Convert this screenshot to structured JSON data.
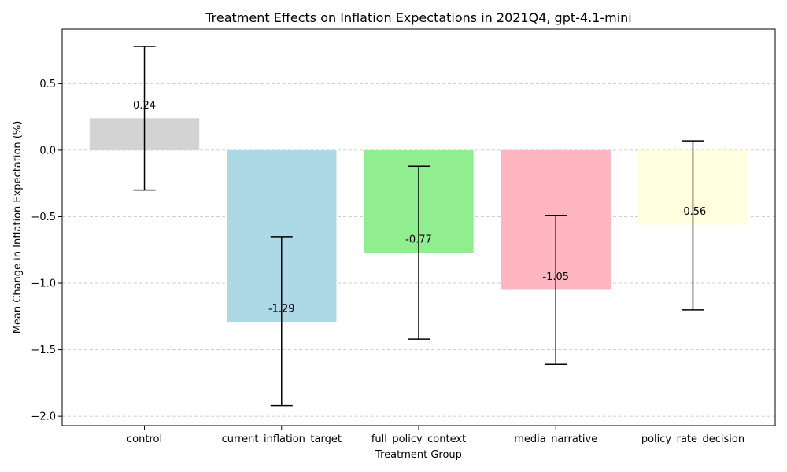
{
  "chart_data": {
    "type": "bar",
    "title": "Treatment Effects on Inflation Expectations in 2021Q4, gpt-4.1-mini",
    "xlabel": "Treatment Group",
    "ylabel": "Mean Change in Inflation Expectation (%)",
    "categories": [
      "control",
      "current_inflation_target",
      "full_policy_context",
      "media_narrative",
      "policy_rate_decision"
    ],
    "values": [
      0.24,
      -1.29,
      -0.77,
      -1.05,
      -0.56
    ],
    "value_labels": [
      "0.24",
      "-1.29",
      "-0.77",
      "-1.05",
      "-0.56"
    ],
    "error_low": [
      -0.3,
      -1.92,
      -1.42,
      -1.61,
      -1.2
    ],
    "error_high": [
      0.78,
      -0.65,
      -0.12,
      -0.49,
      0.07
    ],
    "colors": [
      "#d3d3d3",
      "#add8e6",
      "#90ee90",
      "#ffb6c1",
      "#ffffe0"
    ],
    "ylim": [
      -2.07,
      0.91
    ],
    "yticks": [
      0.5,
      0.0,
      -0.5,
      -1.0,
      -1.5,
      -2.0
    ],
    "ytick_labels": [
      "0.5",
      "0.0",
      "−0.5",
      "−1.0",
      "−1.5",
      "−2.0"
    ],
    "grid": "y-dashed",
    "legend": "none"
  }
}
